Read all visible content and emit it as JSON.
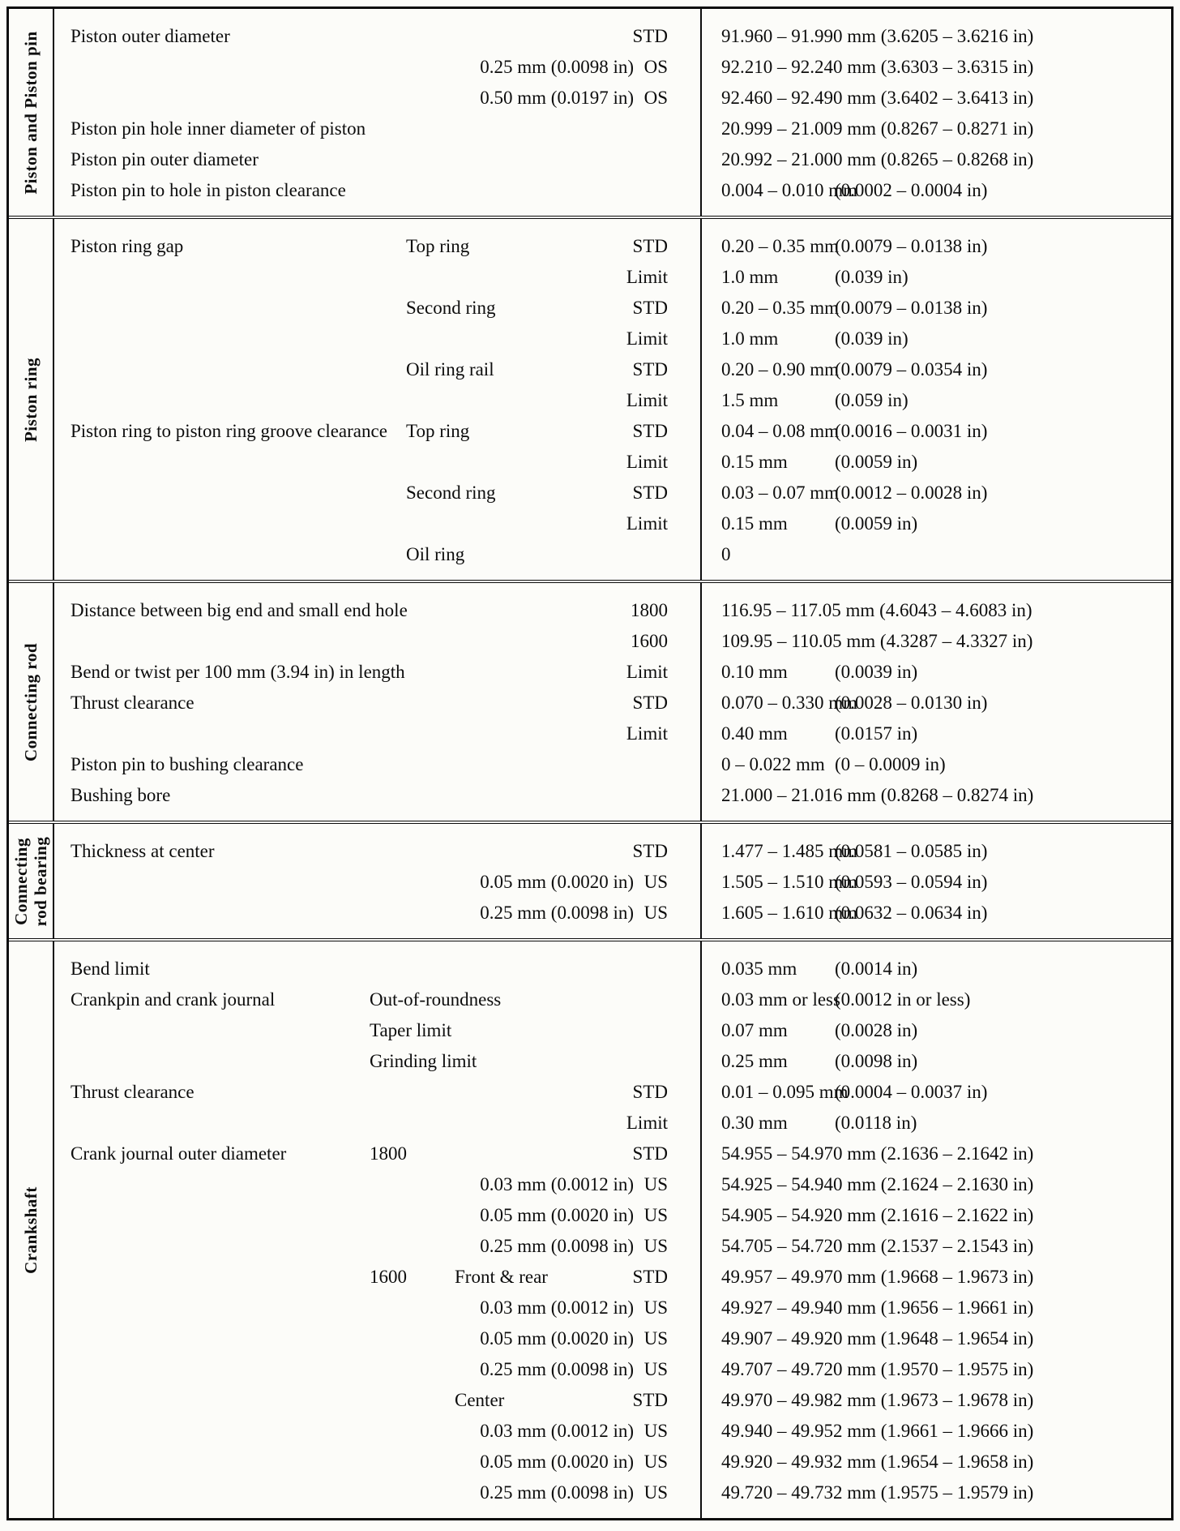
{
  "document": {
    "kind": "engine-mechanical-specifications-table",
    "sections": [
      {
        "label_lines": [
          "Piston and Piston pin"
        ],
        "rows": [
          {
            "label": "Piston outer diameter",
            "qual": "STD",
            "full": "91.960 – 91.990 mm (3.6205 – 3.6216 in)"
          },
          {
            "size": "0.25 mm (0.0098 in)",
            "qual": "OS",
            "full": "92.210 – 92.240 mm (3.6303 – 3.6315 in)"
          },
          {
            "size": "0.50 mm (0.0197 in)",
            "qual": "OS",
            "full": "92.460 – 92.490 mm (3.6402 – 3.6413 in)"
          },
          {
            "label": "Piston pin hole inner diameter of piston",
            "full": "20.999 – 21.009 mm (0.8267 – 0.8271 in)"
          },
          {
            "label": "Piston pin outer diameter",
            "full": "20.992 – 21.000 mm (0.8265 – 0.8268 in)"
          },
          {
            "label": "Piston pin to hole in piston clearance",
            "mm": "0.004 – 0.010 mm",
            "in": "(0.0002 – 0.0004 in)"
          }
        ]
      },
      {
        "label_lines": [
          "Piston ring"
        ],
        "rows": [
          {
            "label": "Piston ring gap",
            "c": "Top ring",
            "qual": "STD",
            "mm": "0.20 – 0.35 mm",
            "in": "(0.0079 – 0.0138 in)"
          },
          {
            "qual": "Limit",
            "mm": "1.0 mm",
            "in": "(0.039 in)"
          },
          {
            "c": "Second ring",
            "qual": "STD",
            "mm": "0.20 – 0.35 mm",
            "in": "(0.0079 – 0.0138 in)"
          },
          {
            "qual": "Limit",
            "mm": "1.0 mm",
            "in": "(0.039 in)"
          },
          {
            "c": "Oil ring rail",
            "qual": "STD",
            "mm": "0.20 – 0.90 mm",
            "in": "(0.0079 – 0.0354 in)"
          },
          {
            "qual": "Limit",
            "mm": "1.5 mm",
            "in": "(0.059 in)"
          },
          {
            "label": "Piston ring to piston ring groove clearance",
            "c": "Top ring",
            "qual": "STD",
            "mm": "0.04 – 0.08 mm",
            "in": "(0.0016 – 0.0031 in)"
          },
          {
            "qual": "Limit",
            "mm": "0.15 mm",
            "in": "(0.0059 in)"
          },
          {
            "c": "Second ring",
            "qual": "STD",
            "mm": "0.03 – 0.07 mm",
            "in": "(0.0012 – 0.0028 in)"
          },
          {
            "qual": "Limit",
            "mm": "0.15 mm",
            "in": "(0.0059 in)"
          },
          {
            "c": "Oil ring",
            "mm": "0"
          }
        ]
      },
      {
        "label_lines": [
          "Connecting rod"
        ],
        "rows": [
          {
            "label": "Distance between big end and small end hole",
            "qual": "1800",
            "full": "116.95 – 117.05 mm (4.6043 – 4.6083 in)"
          },
          {
            "qual": "1600",
            "full": "109.95 – 110.05 mm (4.3287 – 4.3327 in)"
          },
          {
            "label": "Bend or twist per 100 mm (3.94 in) in length",
            "qual": "Limit",
            "mm": "0.10 mm",
            "in": "(0.0039 in)"
          },
          {
            "label": "Thrust clearance",
            "qual": "STD",
            "mm": "0.070 – 0.330 mm",
            "in": "(0.0028 – 0.0130 in)"
          },
          {
            "qual": "Limit",
            "mm": "0.40 mm",
            "in": "(0.0157 in)"
          },
          {
            "label": "Piston pin to bushing clearance",
            "mm": "0 – 0.022 mm",
            "in": "(0 – 0.0009 in)"
          },
          {
            "label": "Bushing bore",
            "full": "21.000 – 21.016 mm (0.8268 – 0.8274 in)"
          }
        ]
      },
      {
        "label_lines": [
          "Connecting",
          "rod bearing"
        ],
        "rows": [
          {
            "label": "Thickness at center",
            "qual": "STD",
            "mm": "1.477 – 1.485 mm",
            "in": "(0.0581 – 0.0585 in)"
          },
          {
            "size": "0.05 mm (0.0020 in)",
            "qual": "US",
            "mm": "1.505 – 1.510 mm",
            "in": "(0.0593 – 0.0594 in)"
          },
          {
            "size": "0.25 mm (0.0098 in)",
            "qual": "US",
            "mm": "1.605 – 1.610 mm",
            "in": "(0.0632 – 0.0634 in)"
          }
        ]
      },
      {
        "label_lines": [
          "Crankshaft"
        ],
        "rows": [
          {
            "label": "Bend limit",
            "mm": "0.035 mm",
            "in": "(0.0014 in)"
          },
          {
            "label": "Crankpin and crank journal",
            "a": "Out-of-roundness",
            "mm": "0.03 mm or less",
            "in": "(0.0012 in or less)"
          },
          {
            "a": "Taper limit",
            "mm": "0.07 mm",
            "in": "(0.0028 in)"
          },
          {
            "a": "Grinding limit",
            "mm": "0.25 mm",
            "in": "(0.0098 in)"
          },
          {
            "label": "Thrust clearance",
            "qual": "STD",
            "mm": "0.01 – 0.095 mm",
            "in": "(0.0004 – 0.0037 in)"
          },
          {
            "qual": "Limit",
            "mm": "0.30 mm",
            "in": "(0.0118 in)"
          },
          {
            "label": "Crank journal outer diameter",
            "a": "1800",
            "qual": "STD",
            "full": "54.955 – 54.970 mm (2.1636 – 2.1642 in)"
          },
          {
            "size": "0.03 mm (0.0012 in)",
            "qual": "US",
            "full": "54.925 – 54.940 mm (2.1624 – 2.1630 in)"
          },
          {
            "size": "0.05 mm (0.0020 in)",
            "qual": "US",
            "full": "54.905 – 54.920 mm (2.1616 – 2.1622 in)"
          },
          {
            "size": "0.25 mm (0.0098 in)",
            "qual": "US",
            "full": "54.705 – 54.720 mm (2.1537 – 2.1543 in)"
          },
          {
            "a": "1600",
            "d": "Front & rear",
            "qual": "STD",
            "full": "49.957 – 49.970 mm (1.9668 – 1.9673 in)"
          },
          {
            "size": "0.03 mm (0.0012 in)",
            "qual": "US",
            "full": "49.927 – 49.940 mm (1.9656 – 1.9661 in)"
          },
          {
            "size": "0.05 mm (0.0020 in)",
            "qual": "US",
            "full": "49.907 – 49.920 mm (1.9648 – 1.9654 in)"
          },
          {
            "size": "0.25 mm (0.0098 in)",
            "qual": "US",
            "full": "49.707 – 49.720 mm (1.9570 – 1.9575 in)"
          },
          {
            "d": "Center",
            "qual": "STD",
            "full": "49.970 – 49.982 mm (1.9673 – 1.9678 in)"
          },
          {
            "size": "0.03 mm (0.0012 in)",
            "qual": "US",
            "full": "49.940 – 49.952 mm (1.9661 – 1.9666 in)"
          },
          {
            "size": "0.05 mm (0.0020 in)",
            "qual": "US",
            "full": "49.920 – 49.932 mm (1.9654 – 1.9658 in)"
          },
          {
            "size": "0.25 mm (0.0098 in)",
            "qual": "US",
            "full": "49.720 – 49.732 mm (1.9575 – 1.9579 in)"
          }
        ]
      }
    ]
  }
}
